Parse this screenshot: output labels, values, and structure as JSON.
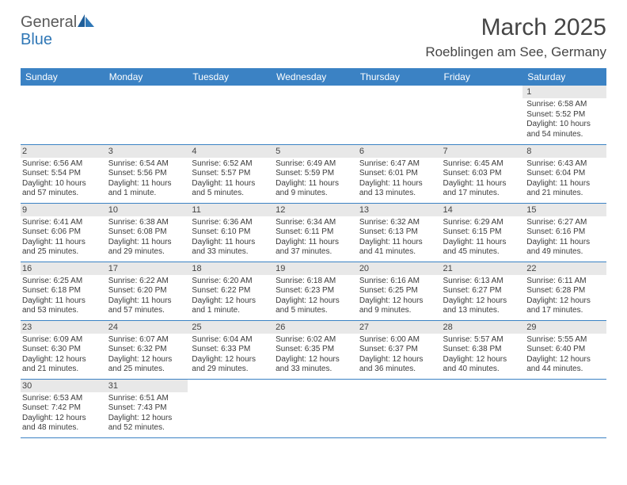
{
  "logo": {
    "text1": "General",
    "text2": "Blue"
  },
  "title": "March 2025",
  "location": "Roeblingen am See, Germany",
  "colors": {
    "header_bg": "#3b82c4",
    "header_text": "#ffffff",
    "daynum_bg": "#e8e8e8",
    "border": "#3b82c4",
    "logo_gray": "#5a5a5a",
    "logo_blue": "#2f77b6"
  },
  "fonts": {
    "family": "Arial",
    "title_size": 30,
    "location_size": 17,
    "header_size": 12,
    "daynum_size": 11,
    "body_size": 10
  },
  "day_headers": [
    "Sunday",
    "Monday",
    "Tuesday",
    "Wednesday",
    "Thursday",
    "Friday",
    "Saturday"
  ],
  "weeks": [
    [
      null,
      null,
      null,
      null,
      null,
      null,
      {
        "n": "1",
        "sr": "Sunrise: 6:58 AM",
        "ss": "Sunset: 5:52 PM",
        "d1": "Daylight: 10 hours",
        "d2": "and 54 minutes."
      }
    ],
    [
      {
        "n": "2",
        "sr": "Sunrise: 6:56 AM",
        "ss": "Sunset: 5:54 PM",
        "d1": "Daylight: 10 hours",
        "d2": "and 57 minutes."
      },
      {
        "n": "3",
        "sr": "Sunrise: 6:54 AM",
        "ss": "Sunset: 5:56 PM",
        "d1": "Daylight: 11 hours",
        "d2": "and 1 minute."
      },
      {
        "n": "4",
        "sr": "Sunrise: 6:52 AM",
        "ss": "Sunset: 5:57 PM",
        "d1": "Daylight: 11 hours",
        "d2": "and 5 minutes."
      },
      {
        "n": "5",
        "sr": "Sunrise: 6:49 AM",
        "ss": "Sunset: 5:59 PM",
        "d1": "Daylight: 11 hours",
        "d2": "and 9 minutes."
      },
      {
        "n": "6",
        "sr": "Sunrise: 6:47 AM",
        "ss": "Sunset: 6:01 PM",
        "d1": "Daylight: 11 hours",
        "d2": "and 13 minutes."
      },
      {
        "n": "7",
        "sr": "Sunrise: 6:45 AM",
        "ss": "Sunset: 6:03 PM",
        "d1": "Daylight: 11 hours",
        "d2": "and 17 minutes."
      },
      {
        "n": "8",
        "sr": "Sunrise: 6:43 AM",
        "ss": "Sunset: 6:04 PM",
        "d1": "Daylight: 11 hours",
        "d2": "and 21 minutes."
      }
    ],
    [
      {
        "n": "9",
        "sr": "Sunrise: 6:41 AM",
        "ss": "Sunset: 6:06 PM",
        "d1": "Daylight: 11 hours",
        "d2": "and 25 minutes."
      },
      {
        "n": "10",
        "sr": "Sunrise: 6:38 AM",
        "ss": "Sunset: 6:08 PM",
        "d1": "Daylight: 11 hours",
        "d2": "and 29 minutes."
      },
      {
        "n": "11",
        "sr": "Sunrise: 6:36 AM",
        "ss": "Sunset: 6:10 PM",
        "d1": "Daylight: 11 hours",
        "d2": "and 33 minutes."
      },
      {
        "n": "12",
        "sr": "Sunrise: 6:34 AM",
        "ss": "Sunset: 6:11 PM",
        "d1": "Daylight: 11 hours",
        "d2": "and 37 minutes."
      },
      {
        "n": "13",
        "sr": "Sunrise: 6:32 AM",
        "ss": "Sunset: 6:13 PM",
        "d1": "Daylight: 11 hours",
        "d2": "and 41 minutes."
      },
      {
        "n": "14",
        "sr": "Sunrise: 6:29 AM",
        "ss": "Sunset: 6:15 PM",
        "d1": "Daylight: 11 hours",
        "d2": "and 45 minutes."
      },
      {
        "n": "15",
        "sr": "Sunrise: 6:27 AM",
        "ss": "Sunset: 6:16 PM",
        "d1": "Daylight: 11 hours",
        "d2": "and 49 minutes."
      }
    ],
    [
      {
        "n": "16",
        "sr": "Sunrise: 6:25 AM",
        "ss": "Sunset: 6:18 PM",
        "d1": "Daylight: 11 hours",
        "d2": "and 53 minutes."
      },
      {
        "n": "17",
        "sr": "Sunrise: 6:22 AM",
        "ss": "Sunset: 6:20 PM",
        "d1": "Daylight: 11 hours",
        "d2": "and 57 minutes."
      },
      {
        "n": "18",
        "sr": "Sunrise: 6:20 AM",
        "ss": "Sunset: 6:22 PM",
        "d1": "Daylight: 12 hours",
        "d2": "and 1 minute."
      },
      {
        "n": "19",
        "sr": "Sunrise: 6:18 AM",
        "ss": "Sunset: 6:23 PM",
        "d1": "Daylight: 12 hours",
        "d2": "and 5 minutes."
      },
      {
        "n": "20",
        "sr": "Sunrise: 6:16 AM",
        "ss": "Sunset: 6:25 PM",
        "d1": "Daylight: 12 hours",
        "d2": "and 9 minutes."
      },
      {
        "n": "21",
        "sr": "Sunrise: 6:13 AM",
        "ss": "Sunset: 6:27 PM",
        "d1": "Daylight: 12 hours",
        "d2": "and 13 minutes."
      },
      {
        "n": "22",
        "sr": "Sunrise: 6:11 AM",
        "ss": "Sunset: 6:28 PM",
        "d1": "Daylight: 12 hours",
        "d2": "and 17 minutes."
      }
    ],
    [
      {
        "n": "23",
        "sr": "Sunrise: 6:09 AM",
        "ss": "Sunset: 6:30 PM",
        "d1": "Daylight: 12 hours",
        "d2": "and 21 minutes."
      },
      {
        "n": "24",
        "sr": "Sunrise: 6:07 AM",
        "ss": "Sunset: 6:32 PM",
        "d1": "Daylight: 12 hours",
        "d2": "and 25 minutes."
      },
      {
        "n": "25",
        "sr": "Sunrise: 6:04 AM",
        "ss": "Sunset: 6:33 PM",
        "d1": "Daylight: 12 hours",
        "d2": "and 29 minutes."
      },
      {
        "n": "26",
        "sr": "Sunrise: 6:02 AM",
        "ss": "Sunset: 6:35 PM",
        "d1": "Daylight: 12 hours",
        "d2": "and 33 minutes."
      },
      {
        "n": "27",
        "sr": "Sunrise: 6:00 AM",
        "ss": "Sunset: 6:37 PM",
        "d1": "Daylight: 12 hours",
        "d2": "and 36 minutes."
      },
      {
        "n": "28",
        "sr": "Sunrise: 5:57 AM",
        "ss": "Sunset: 6:38 PM",
        "d1": "Daylight: 12 hours",
        "d2": "and 40 minutes."
      },
      {
        "n": "29",
        "sr": "Sunrise: 5:55 AM",
        "ss": "Sunset: 6:40 PM",
        "d1": "Daylight: 12 hours",
        "d2": "and 44 minutes."
      }
    ],
    [
      {
        "n": "30",
        "sr": "Sunrise: 6:53 AM",
        "ss": "Sunset: 7:42 PM",
        "d1": "Daylight: 12 hours",
        "d2": "and 48 minutes."
      },
      {
        "n": "31",
        "sr": "Sunrise: 6:51 AM",
        "ss": "Sunset: 7:43 PM",
        "d1": "Daylight: 12 hours",
        "d2": "and 52 minutes."
      },
      null,
      null,
      null,
      null,
      null
    ]
  ]
}
